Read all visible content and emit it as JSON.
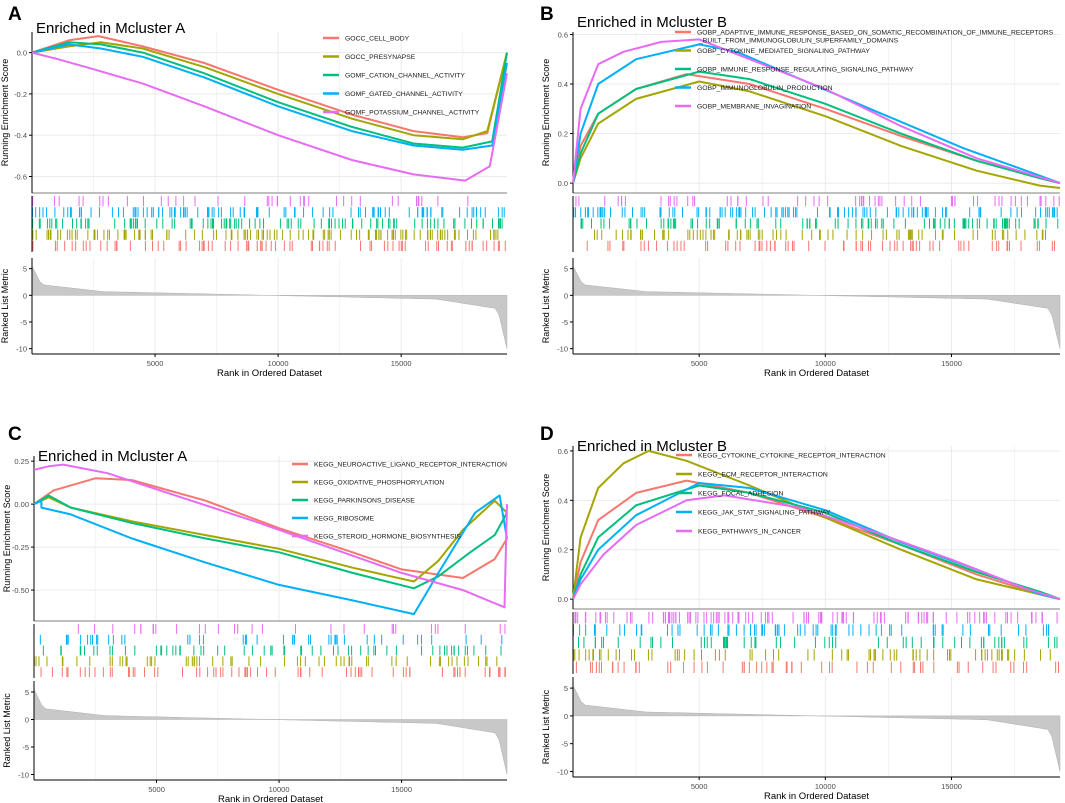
{
  "colors": {
    "red": "#f8766d",
    "olive": "#a3a500",
    "green": "#00bf7d",
    "blue": "#00b0f6",
    "magenta": "#e76bf3",
    "area": "#c8c8c8",
    "grid": "#ebebeb",
    "axis": "#000000"
  },
  "chart_data": [
    {
      "type": "line",
      "panel_label": "A",
      "title": "Enriched in Mcluster A",
      "ylabel": "Running Enrichment Score",
      "metric_ylabel": "Ranked List Metric",
      "xlabel": "Rank in Ordered Dataset",
      "xlim": [
        0,
        19300
      ],
      "ylim": [
        -0.68,
        0.1
      ],
      "yticks": [
        -0.6,
        -0.4,
        -0.2,
        0.0
      ],
      "ytick_labels": [
        "-0.6",
        "-0.4",
        "-0.2",
        "0.0"
      ],
      "xticks": [
        5000,
        10000,
        15000
      ],
      "xtick_labels": [
        "5000",
        "10000",
        "15000"
      ],
      "metric_ylim": [
        -11,
        7
      ],
      "metric_yticks": [
        5,
        0,
        -5,
        -10
      ],
      "metric_ytick_labels": [
        "5",
        "0",
        "-5",
        "-10"
      ],
      "series": [
        {
          "name": "GOCC_CELL_BODY",
          "color_key": "red",
          "x": [
            0,
            1500,
            2700,
            4500,
            7000,
            10000,
            13000,
            15500,
            17500,
            18500,
            19300
          ],
          "y": [
            0.0,
            0.06,
            0.08,
            0.03,
            -0.05,
            -0.18,
            -0.3,
            -0.38,
            -0.41,
            -0.39,
            0.0
          ]
        },
        {
          "name": "GOCC_PRESYNAPSE",
          "color_key": "olive",
          "x": [
            0,
            1500,
            2800,
            4500,
            7000,
            10000,
            13000,
            15500,
            17500,
            18500,
            19300
          ],
          "y": [
            0.0,
            0.03,
            0.05,
            0.02,
            -0.07,
            -0.2,
            -0.32,
            -0.4,
            -0.42,
            -0.38,
            0.0
          ]
        },
        {
          "name": "GOMF_CATION_CHANNEL_ACTIVITY",
          "color_key": "green",
          "x": [
            0,
            1500,
            2800,
            4500,
            7000,
            10000,
            13000,
            15500,
            17500,
            18700,
            19300
          ],
          "y": [
            0.0,
            0.05,
            0.04,
            0.0,
            -0.1,
            -0.24,
            -0.36,
            -0.44,
            -0.46,
            -0.43,
            0.0
          ]
        },
        {
          "name": "GOMF_GATED_CHANNEL_ACTIVITY",
          "color_key": "blue",
          "x": [
            0,
            1500,
            2800,
            4500,
            7000,
            10000,
            13000,
            15500,
            17500,
            18700,
            19300
          ],
          "y": [
            0.0,
            0.04,
            0.02,
            -0.02,
            -0.12,
            -0.26,
            -0.38,
            -0.45,
            -0.47,
            -0.45,
            -0.05
          ]
        },
        {
          "name": "GOMF_POTASSIUM_CHANNEL_ACTIVITY",
          "color_key": "magenta",
          "x": [
            0,
            1000,
            2500,
            4500,
            7000,
            10000,
            13000,
            15500,
            17600,
            18600,
            19300
          ],
          "y": [
            0.0,
            -0.03,
            -0.08,
            -0.15,
            -0.26,
            -0.4,
            -0.52,
            -0.59,
            -0.62,
            -0.55,
            -0.1
          ]
        }
      ]
    },
    {
      "type": "line",
      "panel_label": "B",
      "title": "Enriched in Mcluster B",
      "ylabel": "Running Enrichment Score",
      "metric_ylabel": "Ranked List Metric",
      "xlabel": "Rank in Ordered Dataset",
      "xlim": [
        0,
        19300
      ],
      "ylim": [
        -0.04,
        0.61
      ],
      "yticks": [
        0.0,
        0.2,
        0.4,
        0.6
      ],
      "ytick_labels": [
        "0.0",
        "0.2",
        "0.4",
        "0.6"
      ],
      "xticks": [
        5000,
        10000,
        15000
      ],
      "xtick_labels": [
        "5000",
        "10000",
        "15000"
      ],
      "metric_ylim": [
        -11,
        7
      ],
      "metric_yticks": [
        5,
        0,
        -5,
        -10
      ],
      "metric_ytick_labels": [
        "5",
        "0",
        "-5",
        "-10"
      ],
      "series": [
        {
          "name": "GOBP_ADAPTIVE_IMMUNE_RESPONSE_BASED_ON_SOMATIC_RECOMBINATION_OF_IMMUNE_RECEPTORS_BUILT_FROM_IMMUNOGLOBULIN_SUPERFAMILY_DOMAINS",
          "color_key": "red",
          "x": [
            0,
            300,
            1000,
            2500,
            4500,
            7000,
            10000,
            13000,
            16000,
            18500,
            19300
          ],
          "y": [
            0.0,
            0.15,
            0.28,
            0.38,
            0.44,
            0.4,
            0.3,
            0.19,
            0.09,
            0.02,
            0.0
          ]
        },
        {
          "name": "GOBP_CYTOKINE_MEDIATED_SIGNALING_PATHWAY",
          "color_key": "olive",
          "x": [
            0,
            300,
            1000,
            2500,
            5000,
            7000,
            10000,
            13000,
            16000,
            18500,
            19300
          ],
          "y": [
            0.0,
            0.1,
            0.24,
            0.34,
            0.41,
            0.37,
            0.27,
            0.15,
            0.05,
            -0.01,
            -0.02
          ]
        },
        {
          "name": "GOBP_IMMUNE_RESPONSE_REGULATING_SIGNALING_PATHWAY",
          "color_key": "green",
          "x": [
            0,
            300,
            1000,
            2500,
            5000,
            7000,
            10000,
            13000,
            16000,
            18500,
            19300
          ],
          "y": [
            0.0,
            0.12,
            0.28,
            0.38,
            0.45,
            0.42,
            0.32,
            0.2,
            0.09,
            0.02,
            0.0
          ]
        },
        {
          "name": "GOBP_IMMUNOGLOBULIN_PRODUCTION",
          "color_key": "blue",
          "x": [
            0,
            300,
            1000,
            2500,
            5000,
            6500,
            9000,
            12000,
            15500,
            18500,
            19300
          ],
          "y": [
            0.0,
            0.2,
            0.4,
            0.5,
            0.56,
            0.53,
            0.42,
            0.29,
            0.14,
            0.03,
            0.0
          ]
        },
        {
          "name": "GOBP_MEMBRANE_INVAGINATION",
          "color_key": "magenta",
          "x": [
            0,
            300,
            1000,
            2000,
            3500,
            5000,
            7000,
            10000,
            13000,
            16000,
            19300
          ],
          "y": [
            0.0,
            0.3,
            0.48,
            0.53,
            0.57,
            0.58,
            0.5,
            0.38,
            0.23,
            0.1,
            0.0
          ]
        }
      ]
    },
    {
      "type": "line",
      "panel_label": "C",
      "title": "Enriched in Mcluster A",
      "ylabel": "Running Enrichment Score",
      "metric_ylabel": "Ranked List Metric",
      "xlabel": "Rank in Ordered Dataset",
      "xlim": [
        0,
        19300
      ],
      "ylim": [
        -0.68,
        0.28
      ],
      "yticks": [
        -0.5,
        -0.25,
        0.0,
        0.25
      ],
      "ytick_labels": [
        "-0.50",
        "-0.25",
        "0.00",
        "0.25"
      ],
      "xticks": [
        5000,
        10000,
        15000
      ],
      "xtick_labels": [
        "5000",
        "10000",
        "15000"
      ],
      "metric_ylim": [
        -11,
        7
      ],
      "metric_yticks": [
        5,
        0,
        -5,
        -10
      ],
      "metric_ytick_labels": [
        "5",
        "0",
        "-5",
        "-10"
      ],
      "series": [
        {
          "name": "KEGG_NEUROACTIVE_LIGAND_RECEPTOR_INTERACTION",
          "color_key": "red",
          "x": [
            0,
            800,
            2500,
            4000,
            7000,
            10000,
            13000,
            15000,
            17500,
            18800,
            19300
          ],
          "y": [
            0.0,
            0.08,
            0.15,
            0.14,
            0.02,
            -0.14,
            -0.28,
            -0.38,
            -0.43,
            -0.32,
            -0.2
          ]
        },
        {
          "name": "KEGG_OXIDATIVE_PHOSPHORYLATION",
          "color_key": "olive",
          "x": [
            0,
            600,
            1500,
            4000,
            7000,
            10000,
            13000,
            15500,
            16500,
            17500,
            18800,
            19300
          ],
          "y": [
            0.0,
            0.04,
            -0.02,
            -0.1,
            -0.18,
            -0.26,
            -0.37,
            -0.45,
            -0.33,
            -0.15,
            0.02,
            -0.05
          ]
        },
        {
          "name": "KEGG_PARKINSONS_DISEASE",
          "color_key": "green",
          "x": [
            0,
            600,
            1500,
            4000,
            7000,
            10000,
            13000,
            15500,
            16500,
            17800,
            18800,
            19300
          ],
          "y": [
            0.0,
            0.05,
            -0.02,
            -0.11,
            -0.2,
            -0.28,
            -0.4,
            -0.49,
            -0.42,
            -0.28,
            -0.18,
            -0.05
          ]
        },
        {
          "name": "KEGG_RIBOSOME",
          "color_key": "blue",
          "x": [
            0,
            300,
            300,
            1500,
            4000,
            7000,
            10000,
            13000,
            15500,
            16500,
            18000,
            19000,
            19300
          ],
          "y": [
            0.0,
            0.02,
            -0.02,
            -0.06,
            -0.2,
            -0.34,
            -0.47,
            -0.56,
            -0.64,
            -0.4,
            -0.05,
            0.05,
            -0.2
          ]
        },
        {
          "name": "KEGG_STEROID_HORMONE_BIOSYNTHESIS",
          "color_key": "magenta",
          "x": [
            0,
            600,
            1200,
            3000,
            6000,
            9000,
            12000,
            15000,
            17500,
            19200,
            19300
          ],
          "y": [
            0.2,
            0.22,
            0.23,
            0.18,
            0.04,
            -0.1,
            -0.25,
            -0.4,
            -0.5,
            -0.6,
            0.0
          ]
        }
      ]
    },
    {
      "type": "line",
      "panel_label": "D",
      "title": "Enriched in Mcluster B",
      "ylabel": "Running Enrichment Score",
      "metric_ylabel": "Ranked List Metric",
      "xlabel": "Rank in Ordered Dataset",
      "xlim": [
        0,
        19300
      ],
      "ylim": [
        -0.04,
        0.62
      ],
      "yticks": [
        0.0,
        0.2,
        0.4,
        0.6
      ],
      "ytick_labels": [
        "0.0",
        "0.2",
        "0.4",
        "0.6"
      ],
      "xticks": [
        5000,
        10000,
        15000
      ],
      "xtick_labels": [
        "5000",
        "10000",
        "15000"
      ],
      "metric_ylim": [
        -11,
        7
      ],
      "metric_yticks": [
        5,
        0,
        -5,
        -10
      ],
      "metric_ytick_labels": [
        "5",
        "0",
        "-5",
        "-10"
      ],
      "series": [
        {
          "name": "KEGG_CYTOKINE_CYTOKINE_RECEPTOR_INTERACTION",
          "color_key": "red",
          "x": [
            0,
            300,
            1000,
            2500,
            4500,
            7000,
            10000,
            13000,
            16000,
            18500,
            19300
          ],
          "y": [
            0.0,
            0.15,
            0.32,
            0.43,
            0.48,
            0.43,
            0.33,
            0.22,
            0.1,
            0.02,
            0.0
          ]
        },
        {
          "name": "KEGG_ECM_RECEPTOR_INTERACTION",
          "color_key": "olive",
          "x": [
            0,
            300,
            1000,
            2000,
            3000,
            4500,
            7000,
            10000,
            13000,
            16000,
            19300
          ],
          "y": [
            0.0,
            0.25,
            0.45,
            0.55,
            0.6,
            0.56,
            0.46,
            0.33,
            0.2,
            0.08,
            0.0
          ]
        },
        {
          "name": "KEGG_FOCAL_ADHESION",
          "color_key": "green",
          "x": [
            0,
            300,
            1000,
            2500,
            5000,
            7000,
            10000,
            13000,
            16000,
            18500,
            19300
          ],
          "y": [
            0.0,
            0.1,
            0.25,
            0.38,
            0.46,
            0.43,
            0.35,
            0.22,
            0.11,
            0.03,
            0.0
          ]
        },
        {
          "name": "KEGG_JAK_STAT_SIGNALING_PATHWAY",
          "color_key": "blue",
          "x": [
            0,
            300,
            1000,
            2500,
            5000,
            7000,
            10000,
            13000,
            16000,
            18500,
            19300
          ],
          "y": [
            0.0,
            0.08,
            0.2,
            0.34,
            0.47,
            0.45,
            0.36,
            0.23,
            0.12,
            0.02,
            0.0
          ]
        },
        {
          "name": "KEGG_PATHWAYS_IN_CANCER",
          "color_key": "magenta",
          "x": [
            0,
            300,
            1200,
            2500,
            4500,
            6000,
            9000,
            12000,
            15000,
            18000,
            19300
          ],
          "y": [
            0.0,
            0.06,
            0.18,
            0.3,
            0.4,
            0.42,
            0.37,
            0.27,
            0.16,
            0.04,
            0.0
          ]
        }
      ]
    }
  ]
}
